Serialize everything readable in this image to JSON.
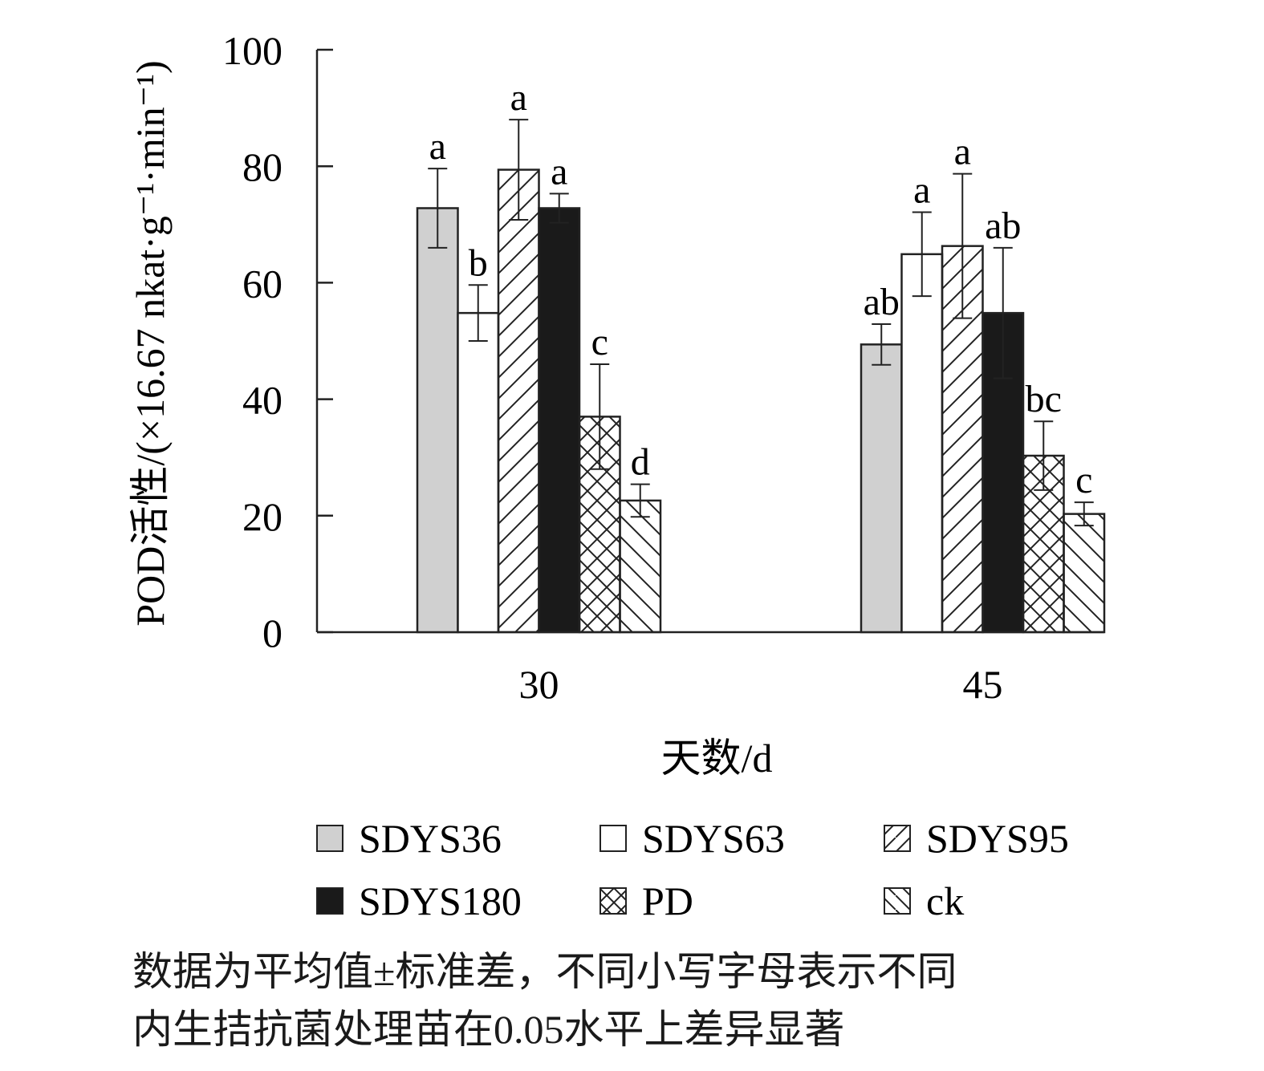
{
  "chart_data": {
    "type": "bar",
    "ylabel": "POD活性/(×16.67 nkat·g⁻¹·min⁻¹)",
    "xlabel": "天数/d",
    "ylim": [
      0,
      100
    ],
    "yticks": [
      0,
      20,
      40,
      60,
      80,
      100
    ],
    "categories": [
      "30",
      "45"
    ],
    "grid": false,
    "legend_position": "bottom",
    "series": [
      {
        "name": "SDYS36",
        "pattern": "gray",
        "values": [
          72.8,
          49.4
        ],
        "errors": [
          6.8,
          3.5
        ],
        "letters": [
          "a",
          "ab"
        ]
      },
      {
        "name": "SDYS63",
        "pattern": "white",
        "values": [
          54.8,
          64.9
        ],
        "errors": [
          4.8,
          7.2
        ],
        "letters": [
          "b",
          "a"
        ]
      },
      {
        "name": "SDYS95",
        "pattern": "hatch-up",
        "values": [
          79.4,
          66.3
        ],
        "errors": [
          8.6,
          12.4
        ],
        "letters": [
          "a",
          "a"
        ]
      },
      {
        "name": "SDYS180",
        "pattern": "black",
        "values": [
          72.8,
          54.8
        ],
        "errors": [
          2.5,
          11.2
        ],
        "letters": [
          "a",
          "ab"
        ]
      },
      {
        "name": "PD",
        "pattern": "crosshatch",
        "values": [
          37.0,
          30.3
        ],
        "errors": [
          9.0,
          5.9
        ],
        "letters": [
          "c",
          "bc"
        ]
      },
      {
        "name": "ck",
        "pattern": "hatch-down",
        "values": [
          22.6,
          20.3
        ],
        "errors": [
          2.8,
          2.0
        ],
        "letters": [
          "d",
          "c"
        ]
      }
    ]
  },
  "caption": {
    "line1": "数据为平均值±标准差，不同小写字母表示不同",
    "line2": "内生拮抗菌处理苗在0.05水平上差异显著"
  }
}
